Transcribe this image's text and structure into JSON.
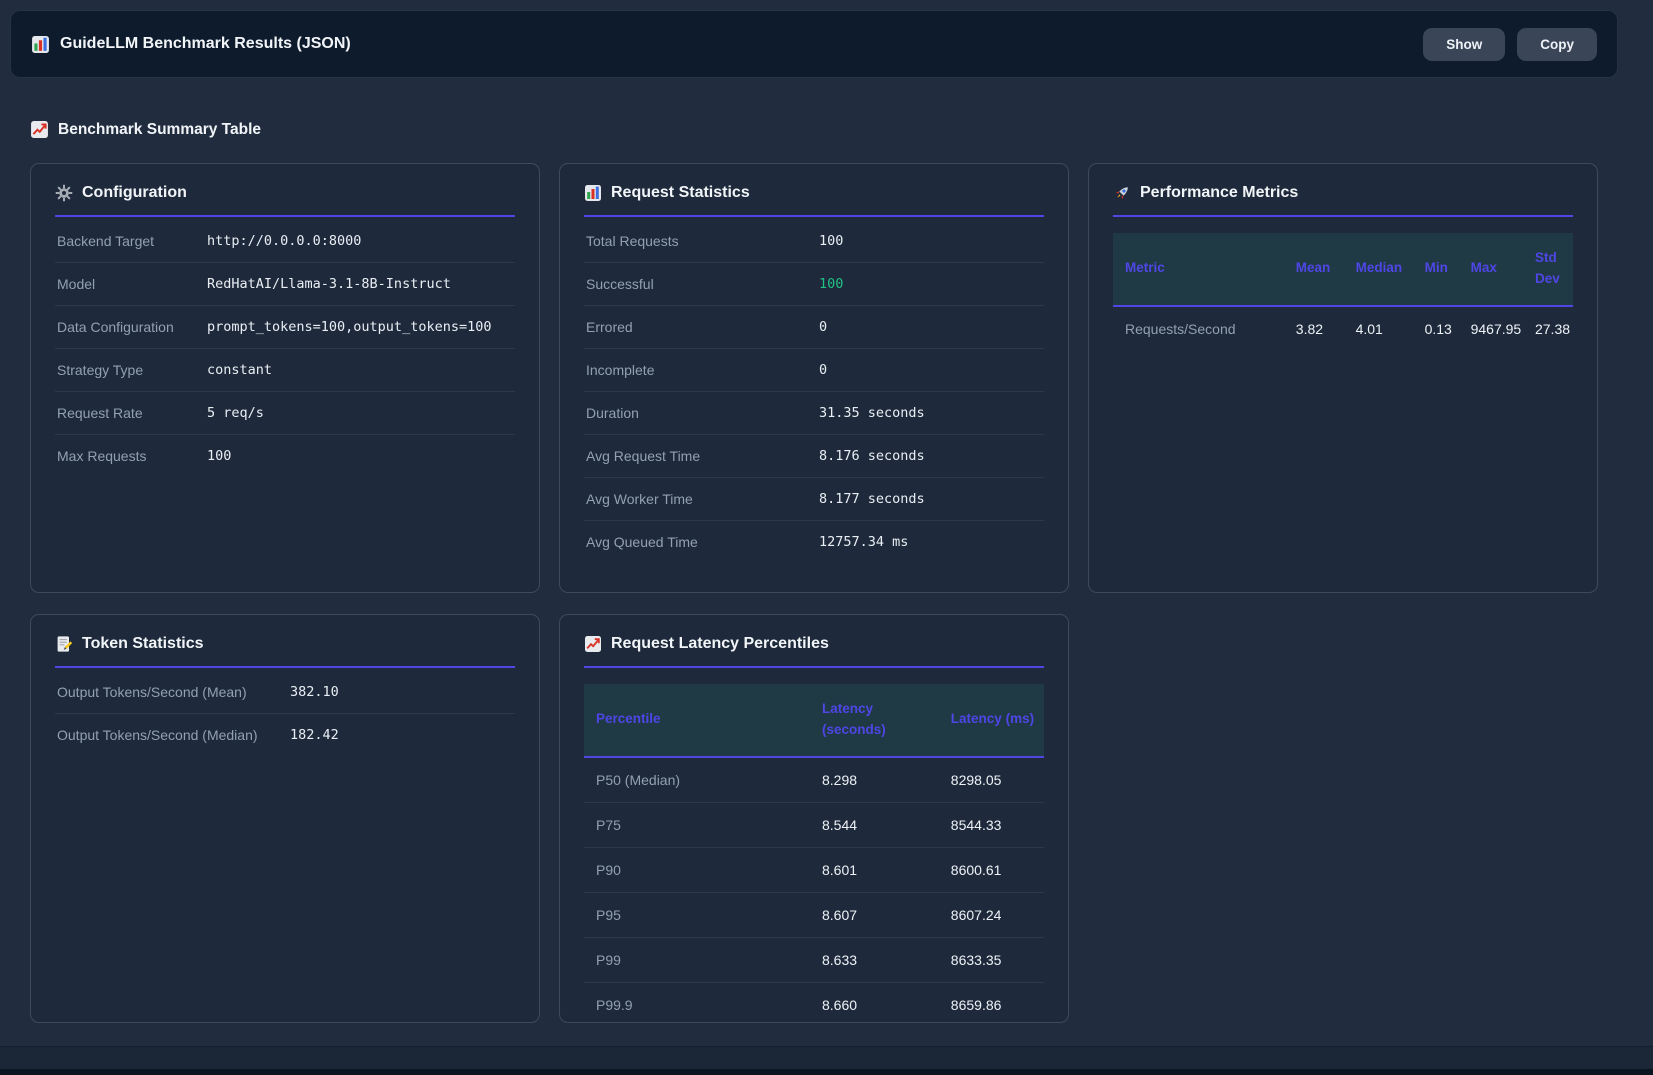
{
  "header": {
    "icon": "bar-chart-icon",
    "title": "GuideLLM Benchmark Results (JSON)",
    "show_button": "Show",
    "copy_button": "Copy"
  },
  "section": {
    "icon": "chart-increasing-icon",
    "title": "Benchmark Summary Table"
  },
  "cards": {
    "configuration": {
      "icon": "gear-icon",
      "title": "Configuration",
      "rows": [
        {
          "label": "Backend Target",
          "value": "http://0.0.0.0:8000"
        },
        {
          "label": "Model",
          "value": "RedHatAI/Llama-3.1-8B-Instruct"
        },
        {
          "label": "Data Configuration",
          "value": "prompt_tokens=100,output_tokens=100"
        },
        {
          "label": "Strategy Type",
          "value": "constant"
        },
        {
          "label": "Request Rate",
          "value": "5 req/s"
        },
        {
          "label": "Max Requests",
          "value": "100"
        }
      ]
    },
    "request_statistics": {
      "icon": "bar-chart-icon",
      "title": "Request Statistics",
      "rows": [
        {
          "label": "Total Requests",
          "value": "100"
        },
        {
          "label": "Successful",
          "value": "100",
          "color": "success"
        },
        {
          "label": "Errored",
          "value": "0"
        },
        {
          "label": "Incomplete",
          "value": "0"
        },
        {
          "label": "Duration",
          "value": "31.35 seconds"
        },
        {
          "label": "Avg Request Time",
          "value": "8.176 seconds"
        },
        {
          "label": "Avg Worker Time",
          "value": "8.177 seconds"
        },
        {
          "label": "Avg Queued Time",
          "value": "12757.34 ms"
        }
      ]
    },
    "performance_metrics": {
      "icon": "rocket-icon",
      "title": "Performance Metrics",
      "table": {
        "headers": [
          "Metric",
          "Mean",
          "Median",
          "Min",
          "Max",
          "Std Dev"
        ],
        "rows": [
          [
            "Requests/Second",
            "3.82",
            "4.01",
            "0.13",
            "9467.95",
            "27.38"
          ]
        ]
      }
    },
    "token_statistics": {
      "icon": "memo-icon",
      "title": "Token Statistics",
      "rows": [
        {
          "label": "Output Tokens/Second (Mean)",
          "value": "382.10"
        },
        {
          "label": "Output Tokens/Second (Median)",
          "value": "182.42"
        }
      ]
    },
    "latency_percentiles": {
      "icon": "chart-increasing-icon",
      "title": "Request Latency Percentiles",
      "table": {
        "headers": [
          "Percentile",
          "Latency (seconds)",
          "Latency (ms)"
        ],
        "rows": [
          [
            "P50 (Median)",
            "8.298",
            "8298.05"
          ],
          [
            "P75",
            "8.544",
            "8544.33"
          ],
          [
            "P90",
            "8.601",
            "8600.61"
          ],
          [
            "P95",
            "8.607",
            "8607.24"
          ],
          [
            "P99",
            "8.633",
            "8633.35"
          ],
          [
            "P99.9",
            "8.660",
            "8659.86"
          ]
        ]
      }
    }
  },
  "colors": {
    "accent": "#4f46e5",
    "success": "#21c186",
    "table_header_bg": "#1f3a44"
  }
}
